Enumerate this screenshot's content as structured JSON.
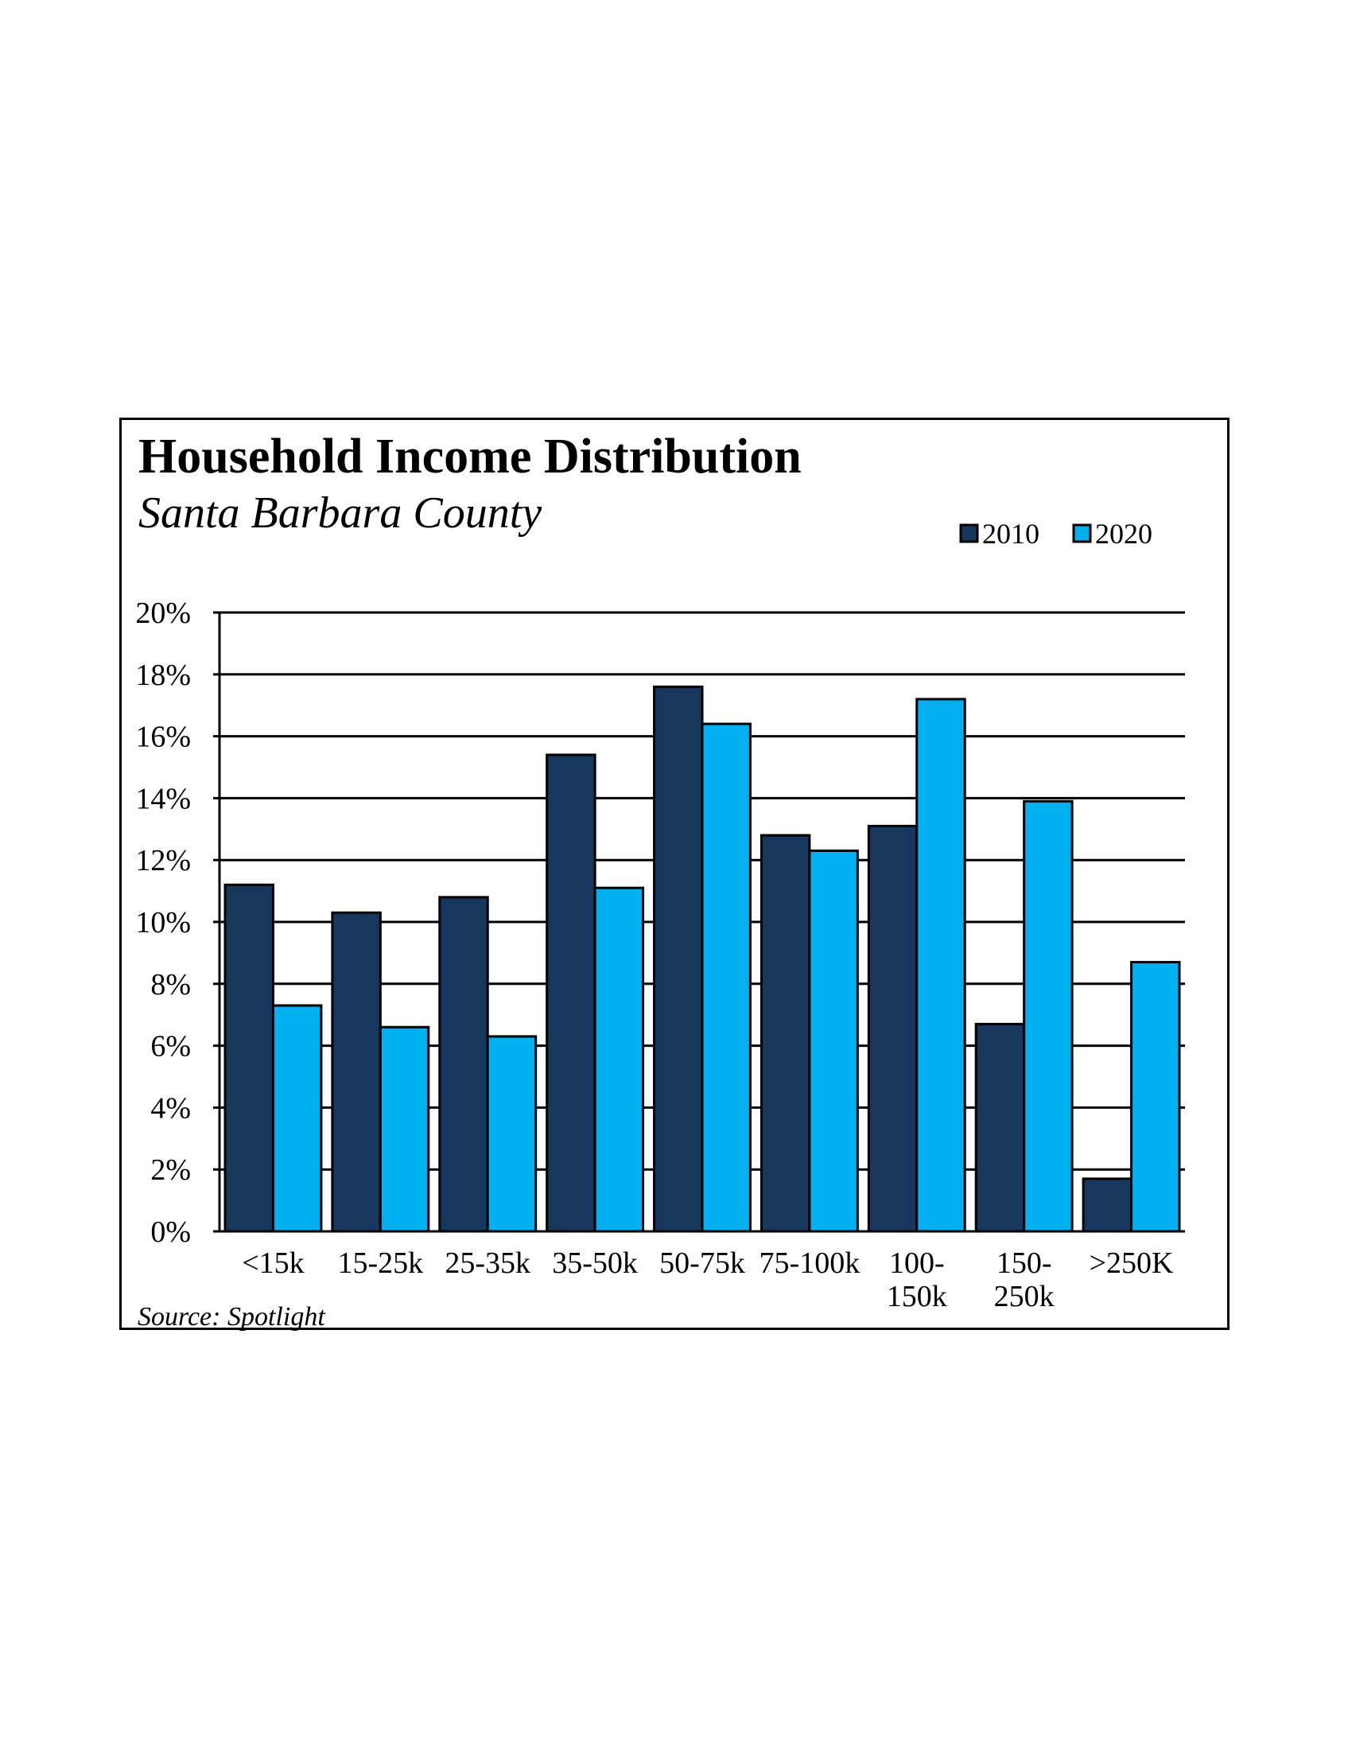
{
  "chart_data": {
    "type": "bar",
    "title": "Household Income Distribution",
    "subtitle": "Santa Barbara County",
    "source": "Source: Spotlight",
    "categories": [
      [
        "<15k"
      ],
      [
        "15-25k"
      ],
      [
        "25-35k"
      ],
      [
        "35-50k"
      ],
      [
        "50-75k"
      ],
      [
        "75-100k"
      ],
      [
        "100-",
        "150k"
      ],
      [
        "150-",
        "250k"
      ],
      [
        ">250K"
      ]
    ],
    "series": [
      {
        "name": "2010",
        "color": "#17375e",
        "values": [
          11.2,
          10.3,
          10.8,
          15.4,
          17.6,
          12.8,
          13.1,
          6.7,
          1.7
        ]
      },
      {
        "name": "2020",
        "color": "#00b0f0",
        "values": [
          7.3,
          6.6,
          6.3,
          11.1,
          16.4,
          12.3,
          17.2,
          13.9,
          8.7
        ]
      }
    ],
    "y_ticks": [
      "0%",
      "2%",
      "4%",
      "6%",
      "8%",
      "10%",
      "12%",
      "14%",
      "16%",
      "18%",
      "20%"
    ],
    "ylim": [
      0,
      20
    ],
    "grid": true,
    "legend": "top-right"
  }
}
